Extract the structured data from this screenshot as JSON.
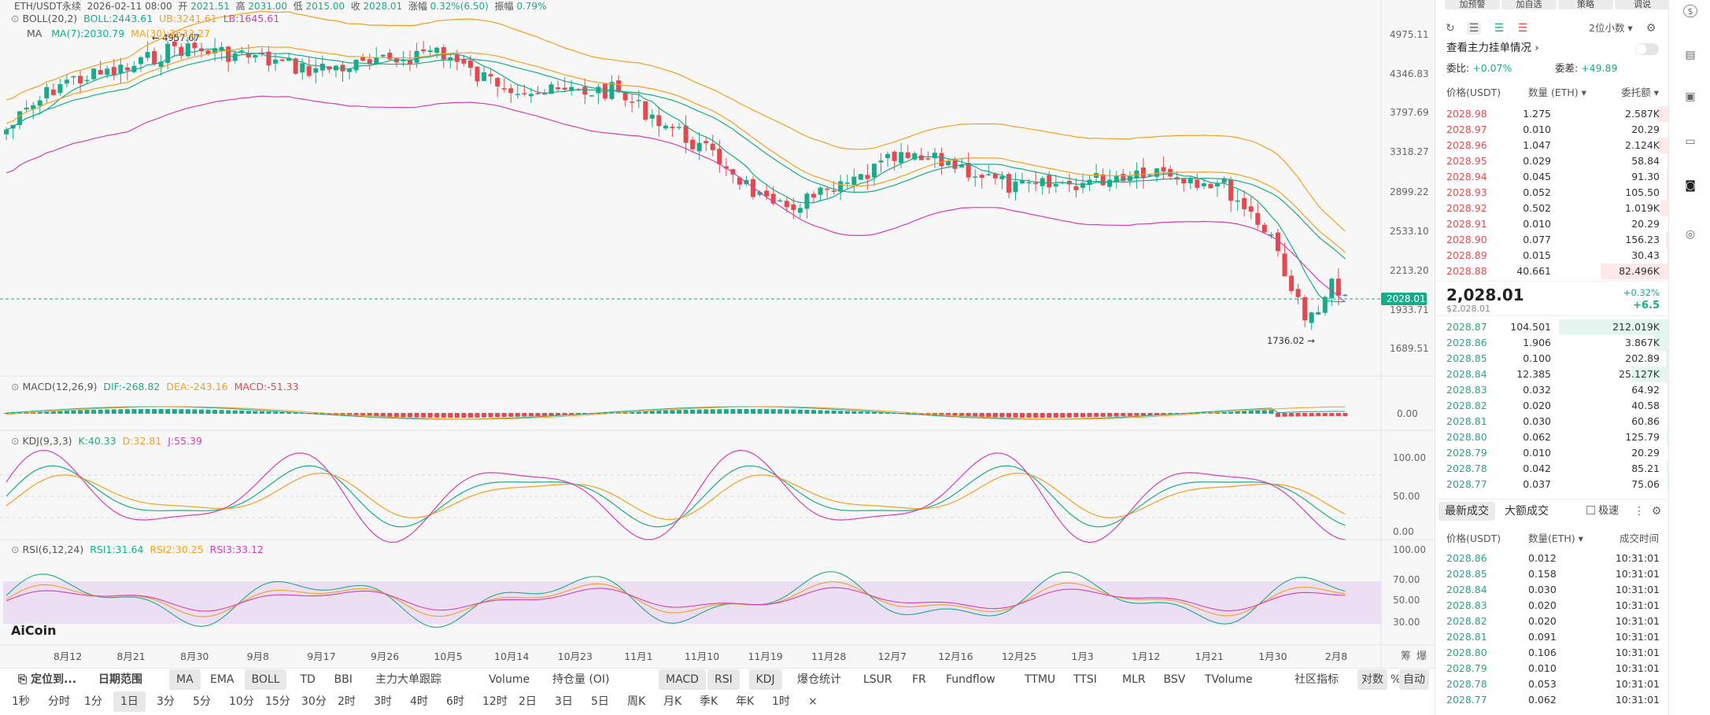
{
  "header": {
    "symbol": "ETH/USDT永续",
    "date": "2026-02-11 08:00",
    "open_label": "开",
    "open": "2021.51",
    "high_label": "高",
    "high": "2031.00",
    "low_label": "低",
    "low": "2015.00",
    "close_label": "收",
    "close": "2028.01",
    "chg_label": "涨幅",
    "chg": "0.32%(6.50)",
    "amp_label": "振幅",
    "amp": "0.79%"
  },
  "indicators": {
    "boll": {
      "name": "BOLL(20,2)",
      "mid": "BOLL:2443.61",
      "ub": "UB:3241.61",
      "lb": "LB:1645.61"
    },
    "ma": {
      "name": "MA",
      "ma7": "MA(7):2030.79",
      "ma30": "MA(30):2633.27"
    },
    "macd": {
      "name": "MACD(12,26,9)",
      "dif": "DIF:-268.82",
      "dea": "DEA:-243.16",
      "macd": "MACD:-51.33"
    },
    "kdj": {
      "name": "KDJ(9,3,3)",
      "k": "K:40.33",
      "d": "D:32.81",
      "j": "J:55.39"
    },
    "rsi": {
      "name": "RSI(6,12,24)",
      "r1": "RSI1:31.64",
      "r2": "RSI2:30.25",
      "r3": "RSI3:33.12"
    }
  },
  "annotations": {
    "high_mark": "4957.67",
    "low_mark": "1736.02"
  },
  "price_axis": [
    "4975.11",
    "4346.83",
    "3797.69",
    "3318.27",
    "2899.22",
    "2533.10",
    "2213.20",
    "1933.71",
    "1689.51"
  ],
  "current_price_tag": "2028.01",
  "macd_axis": [
    "0.00"
  ],
  "kdj_axis": [
    "100.00",
    "50.00",
    "0.00"
  ],
  "rsi_axis": [
    "100.00",
    "70.00",
    "50.00",
    "30.00"
  ],
  "date_axis": [
    "8月12",
    "8月21",
    "8月30",
    "9月8",
    "9月17",
    "9月26",
    "10月5",
    "10月14",
    "10月23",
    "11月1",
    "11月10",
    "11月19",
    "11月28",
    "12月7",
    "12月16",
    "12月25",
    "1月3",
    "1月12",
    "1月21",
    "1月30",
    "2月8"
  ],
  "axis_buttons": {
    "a": "筹",
    "b": "爆"
  },
  "watermark": "AiCoin",
  "toolbar1": {
    "locate": "定位到...",
    "date_range": "日期范围",
    "items": [
      "MA",
      "EMA",
      "BOLL",
      "TD",
      "BBI",
      "主力大单跟踪",
      "Volume",
      "持仓量 (OI)",
      "MACD",
      "RSI",
      "KDJ",
      "爆仓统计",
      "LSUR",
      "FR",
      "Fundflow",
      "TTMU",
      "TTSI",
      "MLR",
      "BSV",
      "TVolume"
    ],
    "community": "社区指标",
    "log": "对数",
    "pct": "%",
    "auto": "自动"
  },
  "toolbar2": {
    "intervals": [
      "1秒",
      "分时",
      "1分",
      "1日",
      "3分",
      "5分",
      "10分",
      "15分",
      "30分",
      "2时",
      "3时",
      "4时",
      "6时",
      "12时",
      "2日",
      "3日",
      "5日",
      "周K",
      "月K",
      "季K",
      "年K",
      "1时"
    ],
    "close": "×"
  },
  "side": {
    "top_buttons": [
      "加预警",
      "加自选",
      "策略",
      "调说"
    ],
    "precision": "2位小数",
    "main_orders": "查看主力挂单情况",
    "ratio_label": "委比:",
    "ratio": "+0.07%",
    "diff_label": "委差:",
    "diff": "+49.89",
    "col_price": "价格(USDT)",
    "col_amount": "数量 (ETH)",
    "col_total": "委托额",
    "asks": [
      [
        "2028.98",
        "1.275",
        "2.587K"
      ],
      [
        "2028.97",
        "0.010",
        "20.29"
      ],
      [
        "2028.96",
        "1.047",
        "2.124K"
      ],
      [
        "2028.95",
        "0.029",
        "58.84"
      ],
      [
        "2028.94",
        "0.045",
        "91.30"
      ],
      [
        "2028.93",
        "0.052",
        "105.50"
      ],
      [
        "2028.92",
        "0.502",
        "1.019K"
      ],
      [
        "2028.91",
        "0.010",
        "20.29"
      ],
      [
        "2028.90",
        "0.077",
        "156.23"
      ],
      [
        "2028.89",
        "0.015",
        "30.43"
      ],
      [
        "2028.88",
        "40.661",
        "82.496K"
      ]
    ],
    "last_price": "2,028.01",
    "last_usd": "$2,028.01",
    "last_pct": "+0.32%",
    "last_chg": "+6.5",
    "bids": [
      [
        "2028.87",
        "104.501",
        "212.019K"
      ],
      [
        "2028.86",
        "1.906",
        "3.867K"
      ],
      [
        "2028.85",
        "0.100",
        "202.89"
      ],
      [
        "2028.84",
        "12.385",
        "25.127K"
      ],
      [
        "2028.83",
        "0.032",
        "64.92"
      ],
      [
        "2028.82",
        "0.020",
        "40.58"
      ],
      [
        "2028.81",
        "0.030",
        "60.86"
      ],
      [
        "2028.80",
        "0.062",
        "125.79"
      ],
      [
        "2028.79",
        "0.010",
        "20.29"
      ],
      [
        "2028.78",
        "0.042",
        "85.21"
      ],
      [
        "2028.77",
        "0.037",
        "75.06"
      ]
    ],
    "trades_tab": "最新成交",
    "big_tab": "大额成交",
    "fast": "极速",
    "tcol_price": "价格(USDT)",
    "tcol_amount": "数量(ETH)",
    "tcol_time": "成交时间",
    "trades": [
      [
        "2028.86",
        "0.012",
        "10:31:01"
      ],
      [
        "2028.85",
        "0.158",
        "10:31:01"
      ],
      [
        "2028.84",
        "0.030",
        "10:31:01"
      ],
      [
        "2028.83",
        "0.020",
        "10:31:01"
      ],
      [
        "2028.82",
        "0.020",
        "10:31:01"
      ],
      [
        "2028.81",
        "0.091",
        "10:31:01"
      ],
      [
        "2028.80",
        "0.106",
        "10:31:01"
      ],
      [
        "2028.79",
        "0.010",
        "10:31:01"
      ],
      [
        "2028.78",
        "0.053",
        "10:31:01"
      ],
      [
        "2028.77",
        "0.062",
        "10:31:01"
      ]
    ]
  },
  "colors": {
    "up": "#1aaa8a",
    "down": "#e5484d",
    "boll_mid": "#1aaa8a",
    "boll_up": "#f0a020",
    "boll_low": "#d23fb0",
    "ma30": "#f0a020",
    "ma7": "#1aaa8a"
  }
}
